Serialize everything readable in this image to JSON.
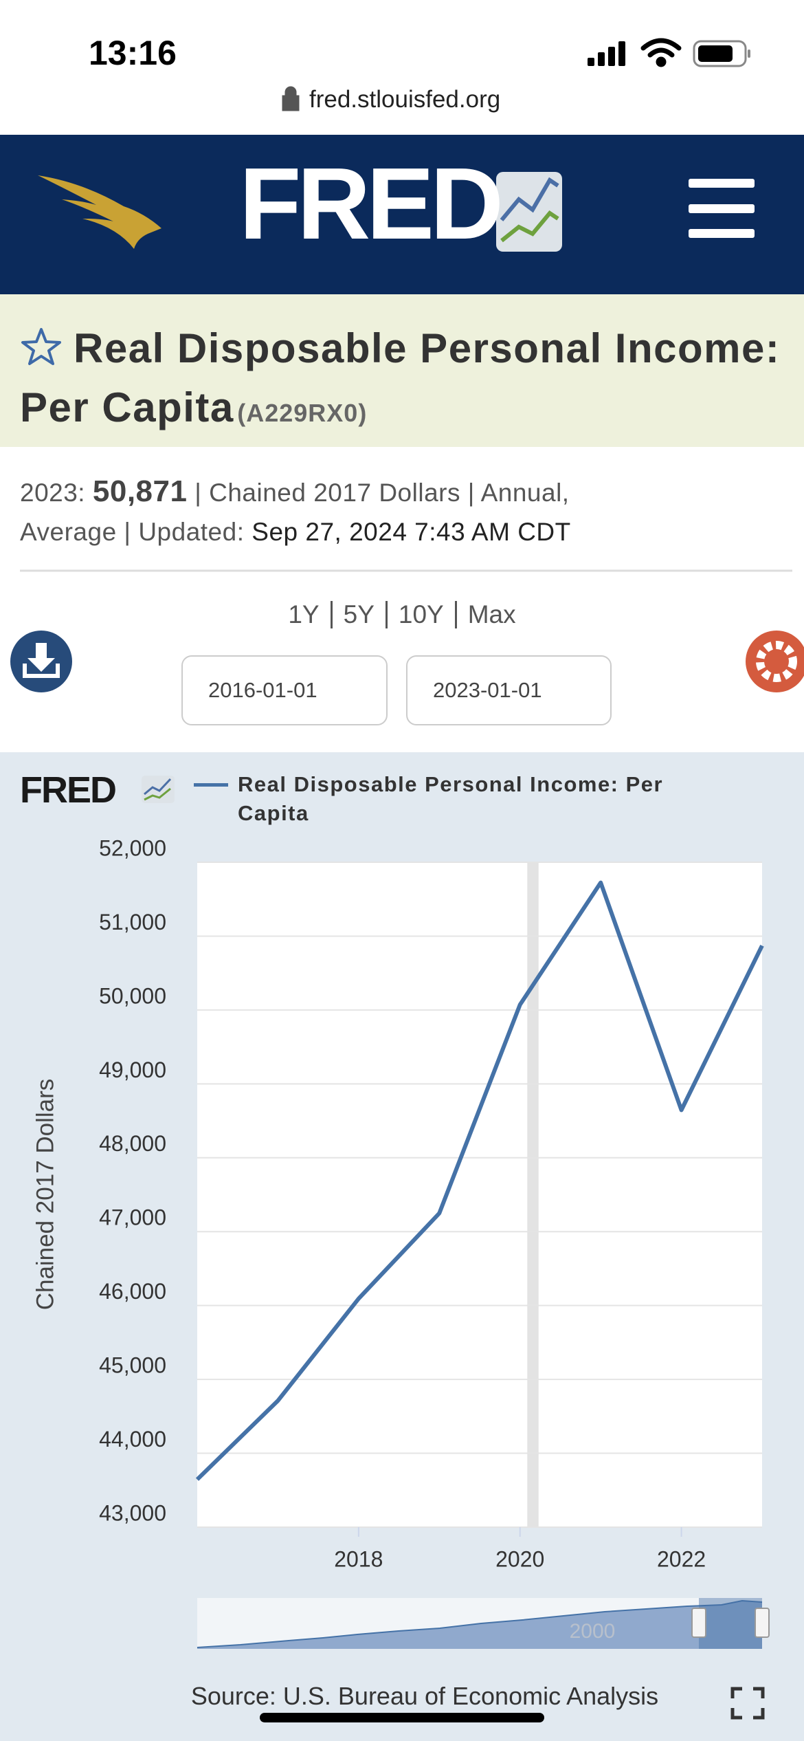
{
  "status_bar": {
    "time": "13:16"
  },
  "browser": {
    "url": "fred.stlouisfed.org"
  },
  "header": {
    "logo": "FRED"
  },
  "series_info": {
    "title": "Real Disposable Personal Income: Per Capita",
    "id": "(A229RX0)",
    "latest_label": "2023:",
    "latest_value": "50,871",
    "details": "| Chained 2017 Dollars | Annual, Average | Updated:",
    "updated": "Sep 27, 2024 7:43 AM CDT"
  },
  "ranges": [
    "1Y",
    "5Y",
    "10Y",
    "Max"
  ],
  "dates": {
    "start": "2016-01-01",
    "end": "2023-01-01"
  },
  "chart_logo": "FRED",
  "chart_data": {
    "type": "line",
    "ylabel": "Chained 2017 Dollars",
    "x": [
      2016,
      2017,
      2018,
      2019,
      2020,
      2021,
      2022,
      2023
    ],
    "series": [
      {
        "name": "Real Disposable Personal Income: Per Capita",
        "color": "#4572a7",
        "values": [
          43646,
          44712,
          46093,
          47249,
          50072,
          51724,
          48646,
          50871
        ]
      }
    ],
    "xlim": [
      2016,
      2023
    ],
    "xticks": [
      2018,
      2020,
      2022
    ],
    "ylim": [
      43000,
      52000
    ],
    "yticks": [
      {
        "value": 43000,
        "label": "43,000"
      },
      {
        "value": 44000,
        "label": "44,000"
      },
      {
        "value": 45000,
        "label": "45,000"
      },
      {
        "value": 46000,
        "label": "46,000"
      },
      {
        "value": 47000,
        "label": "47,000"
      },
      {
        "value": 48000,
        "label": "48,000"
      },
      {
        "value": 49000,
        "label": "49,000"
      },
      {
        "value": 50000,
        "label": "50,000"
      },
      {
        "value": 51000,
        "label": "51,000"
      },
      {
        "value": 52000,
        "label": "52,000"
      }
    ],
    "grid": true,
    "shaded": [
      {
        "from": 2020.09,
        "to": 2020.23,
        "color": "#e3e3e3"
      }
    ]
  },
  "navigator": {
    "label": "2000"
  },
  "source": "Source: U.S. Bureau of Economic Analysis"
}
